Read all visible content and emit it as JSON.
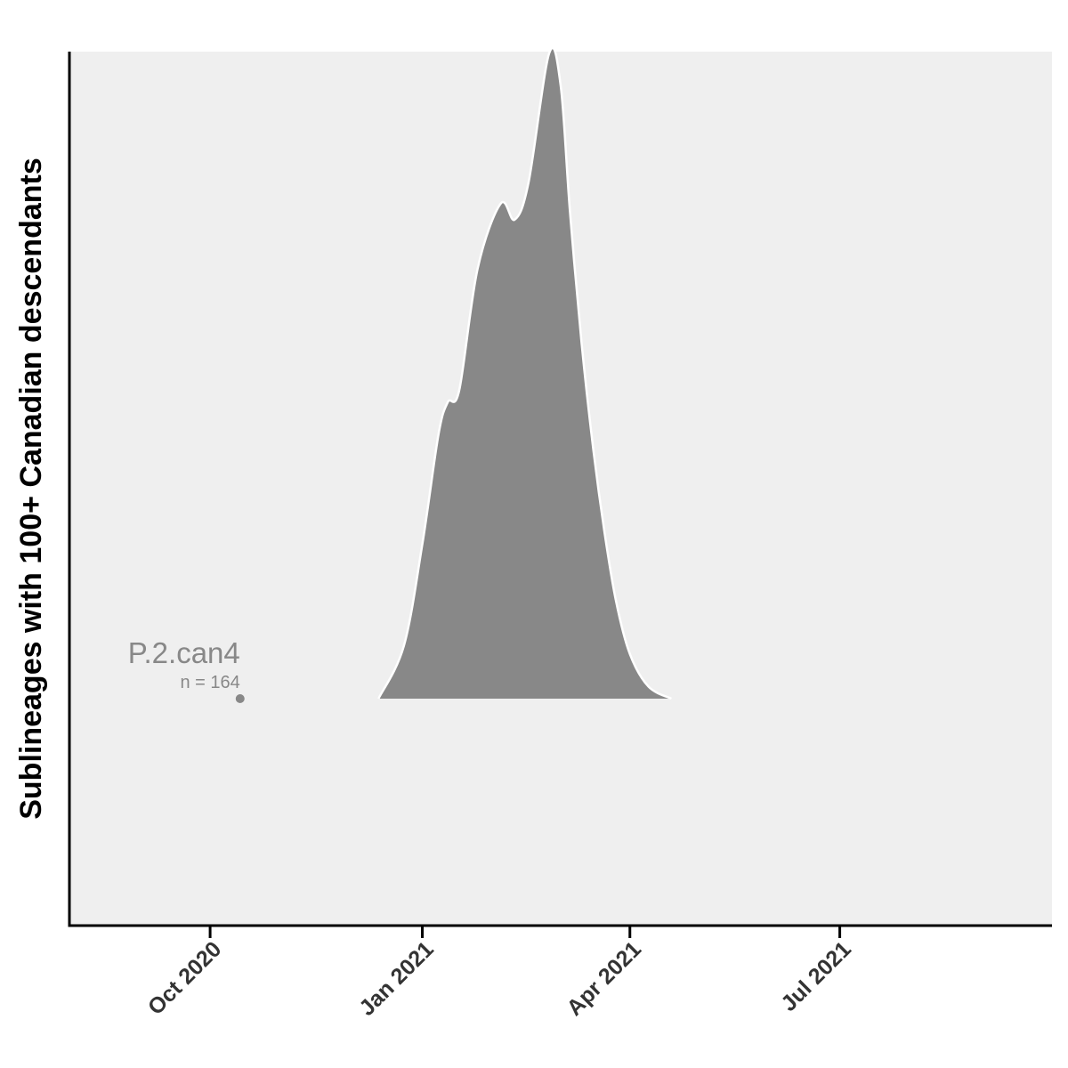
{
  "chart_data": {
    "type": "area",
    "title": "",
    "xlabel": "",
    "ylabel": "Sublineages with 100+ Canadian descendants",
    "x_ticks": [
      {
        "date": "2020-10-01",
        "label": "Oct 2020"
      },
      {
        "date": "2021-01-01",
        "label": "Jan 2021"
      },
      {
        "date": "2021-04-01",
        "label": "Apr 2021"
      },
      {
        "date": "2021-07-01",
        "label": "Jul 2021"
      }
    ],
    "xlim": [
      "2020-08-01",
      "2021-10-01"
    ],
    "ylim": [
      0,
      1
    ],
    "grid": false,
    "legend": "none",
    "colors": {
      "panel_background": "#efefef",
      "ridge_fill": "#888888",
      "ridge_outline": "#ffffff",
      "label": "#888888"
    },
    "series": [
      {
        "name": "P.2.can4",
        "count_label": "n =  164",
        "origin_date": "2020-10-14",
        "density_x": [
          "2020-12-13",
          "2020-12-24",
          "2021-01-01",
          "2021-01-08",
          "2021-01-12",
          "2021-01-17",
          "2021-01-25",
          "2021-02-04",
          "2021-02-10",
          "2021-02-16",
          "2021-02-25",
          "2021-03-02",
          "2021-03-06",
          "2021-03-11",
          "2021-03-16",
          "2021-03-21",
          "2021-03-26",
          "2021-04-01",
          "2021-04-09",
          "2021-04-19"
        ],
        "density_y": [
          0.0,
          0.13,
          0.38,
          0.65,
          0.73,
          0.76,
          1.06,
          1.22,
          1.18,
          1.27,
          1.59,
          1.51,
          1.2,
          0.88,
          0.62,
          0.41,
          0.24,
          0.11,
          0.03,
          0.0
        ]
      }
    ]
  }
}
